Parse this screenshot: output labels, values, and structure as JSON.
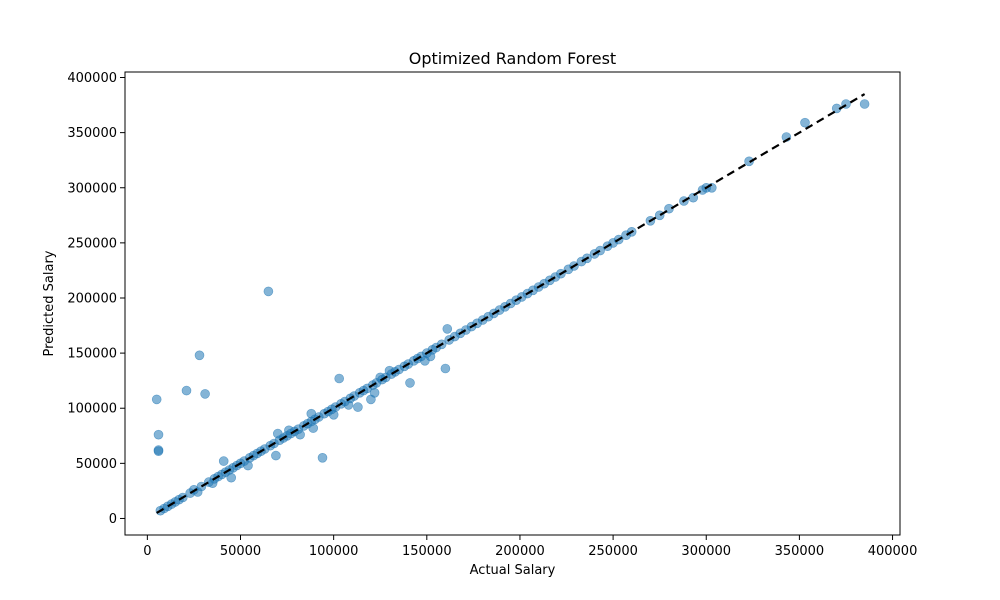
{
  "chart_data": {
    "type": "scatter",
    "title": "Optimized Random Forest",
    "xlabel": "Actual Salary",
    "ylabel": "Predicted Salary",
    "xlim": [
      -12000,
      404000
    ],
    "ylim": [
      -15000,
      405000
    ],
    "xticks": [
      0,
      50000,
      100000,
      150000,
      200000,
      250000,
      300000,
      350000,
      400000
    ],
    "yticks": [
      0,
      50000,
      100000,
      150000,
      200000,
      250000,
      300000,
      350000,
      400000
    ],
    "xtick_labels": [
      "0",
      "50000",
      "100000",
      "150000",
      "200000",
      "250000",
      "300000",
      "350000",
      "400000"
    ],
    "ytick_labels": [
      "0",
      "50000",
      "100000",
      "150000",
      "200000",
      "250000",
      "300000",
      "350000",
      "400000"
    ],
    "grid": false,
    "point_color": "#1f77b4",
    "point_alpha": 0.55,
    "reference_line": {
      "x": [
        5000,
        385000
      ],
      "y": [
        5000,
        385000
      ],
      "style": "dashed",
      "color": "#000000"
    },
    "outliers": [
      {
        "x": 5000,
        "y": 108000
      },
      {
        "x": 6000,
        "y": 76000
      },
      {
        "x": 6000,
        "y": 62000
      },
      {
        "x": 6000,
        "y": 61000
      },
      {
        "x": 21000,
        "y": 116000
      },
      {
        "x": 28000,
        "y": 148000
      },
      {
        "x": 31000,
        "y": 113000
      },
      {
        "x": 65000,
        "y": 206000
      },
      {
        "x": 69000,
        "y": 57000
      },
      {
        "x": 94000,
        "y": 55000
      },
      {
        "x": 103000,
        "y": 127000
      },
      {
        "x": 113000,
        "y": 101000
      },
      {
        "x": 141000,
        "y": 123000
      },
      {
        "x": 160000,
        "y": 136000
      },
      {
        "x": 161000,
        "y": 172000
      },
      {
        "x": 41000,
        "y": 52000
      },
      {
        "x": 45000,
        "y": 37000
      },
      {
        "x": 54000,
        "y": 48000
      },
      {
        "x": 120000,
        "y": 108000
      },
      {
        "x": 122000,
        "y": 114000
      },
      {
        "x": 149000,
        "y": 143000
      },
      {
        "x": 152000,
        "y": 147000
      },
      {
        "x": 130000,
        "y": 134000
      },
      {
        "x": 88000,
        "y": 95000
      },
      {
        "x": 100000,
        "y": 94000
      },
      {
        "x": 76000,
        "y": 80000
      },
      {
        "x": 82000,
        "y": 76000
      },
      {
        "x": 27000,
        "y": 24000
      },
      {
        "x": 35000,
        "y": 32000
      },
      {
        "x": 70000,
        "y": 77000
      },
      {
        "x": 89000,
        "y": 82000
      },
      {
        "x": 108000,
        "y": 103000
      },
      {
        "x": 125000,
        "y": 128000
      }
    ],
    "diagonal_cluster": {
      "x_values": [
        7000,
        9000,
        11000,
        13000,
        15000,
        17000,
        19000,
        23000,
        25000,
        29000,
        33000,
        36000,
        38000,
        40000,
        42000,
        44000,
        46000,
        48000,
        50000,
        52000,
        55000,
        57000,
        59000,
        61000,
        63000,
        66000,
        68000,
        71000,
        73000,
        75000,
        77000,
        79000,
        81000,
        84000,
        86000,
        88000,
        90000,
        92000,
        95000,
        97000,
        99000,
        101000,
        104000,
        106000,
        109000,
        111000,
        114000,
        116000,
        118000,
        121000,
        123000,
        126000,
        128000,
        131000,
        133000,
        135000,
        138000,
        140000,
        143000,
        145000,
        147000,
        150000,
        153000,
        155000,
        158000,
        162000,
        165000,
        168000,
        171000,
        174000,
        177000,
        180000,
        183000,
        186000,
        189000,
        192000,
        195000,
        198000,
        201000,
        204000,
        207000,
        210000,
        213000,
        216000,
        219000,
        222000,
        226000,
        229000,
        233000,
        236000,
        240000,
        243000,
        247000,
        250000,
        253000,
        257000,
        260000,
        270000,
        275000,
        280000,
        288000,
        293000,
        298000,
        300000,
        303000,
        323000,
        343000,
        353000,
        370000,
        375000,
        385000
      ],
      "y_values": [
        7000,
        9000,
        11000,
        13000,
        15000,
        17000,
        19000,
        23000,
        26000,
        29000,
        33000,
        36000,
        38000,
        40000,
        42000,
        44000,
        46000,
        48000,
        50000,
        52000,
        55000,
        57000,
        59000,
        61000,
        63000,
        66000,
        68000,
        71000,
        73000,
        75000,
        77000,
        79000,
        81000,
        84000,
        86000,
        88000,
        90000,
        92000,
        95000,
        97000,
        99000,
        101000,
        104000,
        106000,
        109000,
        111000,
        114000,
        116000,
        118000,
        121000,
        123000,
        126000,
        128000,
        131000,
        133000,
        135000,
        138000,
        140000,
        143000,
        145000,
        147000,
        150000,
        153000,
        155000,
        158000,
        162000,
        165000,
        168000,
        171000,
        174000,
        177000,
        180000,
        183000,
        186000,
        189000,
        192000,
        195000,
        198000,
        201000,
        204000,
        207000,
        210000,
        213000,
        216000,
        219000,
        222000,
        226000,
        229000,
        233000,
        236000,
        240000,
        243000,
        247000,
        250000,
        253000,
        257000,
        260000,
        270000,
        275000,
        281000,
        288000,
        291000,
        298000,
        300000,
        300000,
        324000,
        346000,
        359000,
        372000,
        376000,
        376000
      ]
    }
  }
}
